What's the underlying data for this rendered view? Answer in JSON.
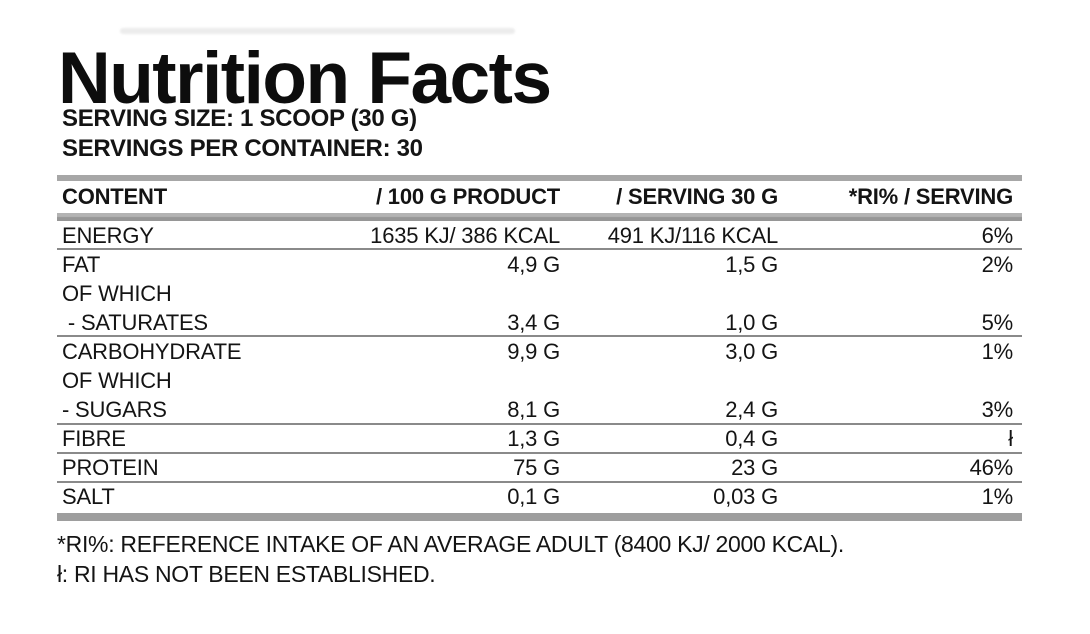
{
  "label": {
    "title": "Nutrition Facts",
    "serving_size_line": "SERVING SIZE: 1 SCOOP (30 G)",
    "servings_per_container_line": "SERVINGS PER CONTAINER: 30"
  },
  "table": {
    "columns": {
      "content": "CONTENT",
      "per_100g": "/ 100 G PRODUCT",
      "per_serving": "/ SERVING 30 G",
      "ri_percent": "*RI% / SERVING"
    },
    "rows": [
      {
        "content": "ENERGY",
        "per_100g": "1635 KJ/ 386 KCAL",
        "per_serving": "491 KJ/116 KCAL",
        "ri_percent": "6%"
      },
      {
        "content": "FAT",
        "per_100g": "4,9 G",
        "per_serving": "1,5 G",
        "ri_percent": "2%"
      },
      {
        "content": "OF WHICH",
        "per_100g": "",
        "per_serving": "",
        "ri_percent": ""
      },
      {
        "content": " - SATURATES",
        "per_100g": "3,4 G",
        "per_serving": "1,0 G",
        "ri_percent": "5%"
      },
      {
        "content": "CARBOHYDRATE",
        "per_100g": "9,9 G",
        "per_serving": "3,0 G",
        "ri_percent": "1%"
      },
      {
        "content": "OF WHICH",
        "per_100g": "",
        "per_serving": "",
        "ri_percent": ""
      },
      {
        "content": "- SUGARS",
        "per_100g": "8,1 G",
        "per_serving": "2,4 G",
        "ri_percent": "3%"
      },
      {
        "content": "FIBRE",
        "per_100g": "1,3 G",
        "per_serving": "0,4 G",
        "ri_percent": "ł"
      },
      {
        "content": "PROTEIN",
        "per_100g": "75 G",
        "per_serving": "23 G",
        "ri_percent": "46%"
      },
      {
        "content": "SALT",
        "per_100g": "0,1 G",
        "per_serving": "0,03 G",
        "ri_percent": "1%"
      }
    ]
  },
  "footnotes": {
    "ri_definition": "*RI%: REFERENCE INTAKE OF AN AVERAGE ADULT (8400 KJ/ 2000 KCAL).",
    "ri_not_established": "ł: RI HAS NOT BEEN ESTABLISHED."
  },
  "colors": {
    "text": "#141414",
    "title": "#0d0d0d",
    "thick_bar_gray": "#a7a7a7",
    "thin_line_gray": "#8a8a8a",
    "background": "#ffffff"
  }
}
